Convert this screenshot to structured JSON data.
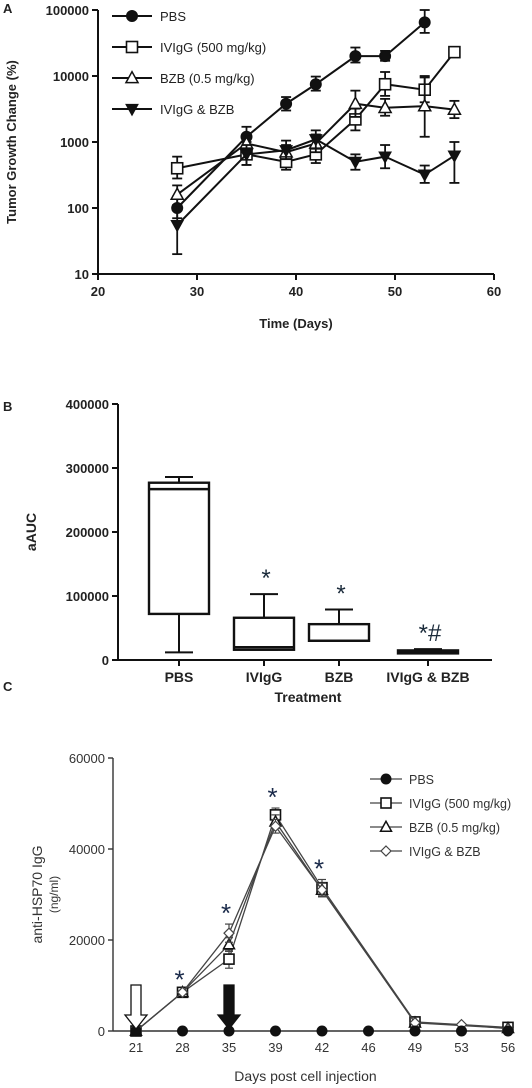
{
  "chart_data": [
    {
      "panel": "A",
      "type": "line",
      "xlabel": "Time (Days)",
      "ylabel": "Tumor Growth Change (%)",
      "x_ticks": [
        20,
        30,
        40,
        50,
        60
      ],
      "y_ticks": [
        "10",
        "100",
        "1000",
        "10000",
        "100000"
      ],
      "xlim": [
        20,
        60
      ],
      "ylim": [
        10,
        100000
      ],
      "y_scale": "log",
      "legend_position": "top-left",
      "series": [
        {
          "name": "PBS",
          "marker": "filled-circle",
          "x": [
            28,
            35,
            39,
            42,
            46,
            49,
            53
          ],
          "y": [
            100,
            1200,
            3800,
            7500,
            20000,
            20000,
            65000
          ],
          "err_up": [
            150,
            1700,
            4800,
            9800,
            27000,
            24000,
            100000
          ],
          "err_down": [
            70,
            900,
            3000,
            6000,
            16000,
            17000,
            45000
          ]
        },
        {
          "name": "IVIgG (500 mg/kg)",
          "marker": "open-square",
          "x": [
            28,
            35,
            39,
            42,
            46,
            49,
            53,
            56
          ],
          "y": [
            400,
            650,
            500,
            650,
            2200,
            7500,
            6200,
            23000
          ],
          "err_up": [
            600,
            1000,
            650,
            900,
            3200,
            11500,
            9500,
            26000
          ],
          "err_down": [
            280,
            450,
            380,
            480,
            1500,
            5000,
            4000,
            20000
          ]
        },
        {
          "name": "BZB (0.5 mg/kg)",
          "marker": "open-triangle",
          "x": [
            28,
            35,
            39,
            42,
            46,
            49,
            53,
            56
          ],
          "y": [
            160,
            950,
            700,
            950,
            3800,
            3300,
            3500,
            3100
          ],
          "err_up": [
            220,
            1300,
            900,
            1300,
            6000,
            4500,
            10000,
            4200
          ],
          "err_down": [
            110,
            700,
            550,
            700,
            2400,
            2500,
            1200,
            2300
          ]
        },
        {
          "name": "IVIgG & BZB",
          "marker": "filled-down-triangle",
          "x": [
            28,
            35,
            39,
            42,
            46,
            49,
            53,
            56
          ],
          "y": [
            55,
            650,
            750,
            1100,
            500,
            600,
            320,
            620
          ],
          "err_up": [
            110,
            900,
            1050,
            1500,
            650,
            900,
            440,
            1000
          ],
          "err_down": [
            20,
            450,
            550,
            800,
            380,
            400,
            240,
            240
          ]
        }
      ]
    },
    {
      "panel": "B",
      "type": "box",
      "xlabel": "Treatment",
      "ylabel": "aAUC",
      "categories": [
        "PBS",
        "IVIgG",
        "BZB",
        "IVIgG & BZB"
      ],
      "y_ticks": [
        "0",
        "100000",
        "200000",
        "300000",
        "400000"
      ],
      "ylim": [
        0,
        400000
      ],
      "boxes": [
        {
          "min": 12000,
          "q1": 72000,
          "median": 267000,
          "q3": 277000,
          "max": 286000,
          "annotation": ""
        },
        {
          "min": 16000,
          "q1": 16000,
          "median": 20000,
          "q3": 66000,
          "max": 103000,
          "annotation": "*"
        },
        {
          "min": 30000,
          "q1": 30000,
          "median": 30000,
          "q3": 56000,
          "max": 79000,
          "annotation": "*"
        },
        {
          "min": 11000,
          "q1": 11000,
          "median": 13000,
          "q3": 15000,
          "max": 17000,
          "annotation": "*#"
        }
      ]
    },
    {
      "panel": "C",
      "type": "line",
      "xlabel": "Days post cell injection",
      "ylabel": "anti-HSP70 IgG\n(ng/ml)",
      "categories": [
        "21",
        "28",
        "35",
        "39",
        "42",
        "46",
        "49",
        "53",
        "56"
      ],
      "y_ticks": [
        "0",
        "20000",
        "40000",
        "60000"
      ],
      "ylim": [
        0,
        60000
      ],
      "legend_position": "top-right",
      "series": [
        {
          "name": "PBS",
          "marker": "filled-circle",
          "y": [
            0,
            0,
            0,
            0,
            0,
            0,
            0,
            0,
            0
          ],
          "err": [
            0,
            0,
            0,
            0,
            0,
            0,
            0,
            0,
            0
          ]
        },
        {
          "name": "IVIgG (500 mg/kg)",
          "marker": "open-square",
          "y": [
            0,
            8500,
            15800,
            47500,
            31500,
            null,
            2000,
            null,
            800
          ],
          "err": [
            0,
            400,
            2000,
            1500,
            1800,
            0,
            300,
            0,
            200
          ]
        },
        {
          "name": "BZB (0.5 mg/kg)",
          "marker": "open-triangle",
          "y": [
            0,
            8500,
            19000,
            46000,
            31000,
            null,
            1800,
            null,
            600
          ],
          "err": [
            0,
            400,
            1500,
            1500,
            1500,
            0,
            300,
            0,
            200
          ]
        },
        {
          "name": "IVIgG & BZB",
          "marker": "open-diamond",
          "y": [
            0,
            8500,
            21500,
            45000,
            31000,
            null,
            1800,
            1400,
            500
          ],
          "err": [
            0,
            400,
            2000,
            1500,
            1500,
            0,
            300,
            200,
            200
          ]
        }
      ],
      "significance_marks": [
        {
          "category": "28",
          "text": "*"
        },
        {
          "category": "35",
          "text": "*"
        },
        {
          "category": "39",
          "text": "*"
        },
        {
          "category": "42",
          "text": "*"
        }
      ],
      "arrows": [
        {
          "category": "21",
          "style": "open"
        },
        {
          "category": "35",
          "style": "filled"
        }
      ]
    }
  ],
  "panel_labels": [
    "A",
    "B",
    "C"
  ]
}
